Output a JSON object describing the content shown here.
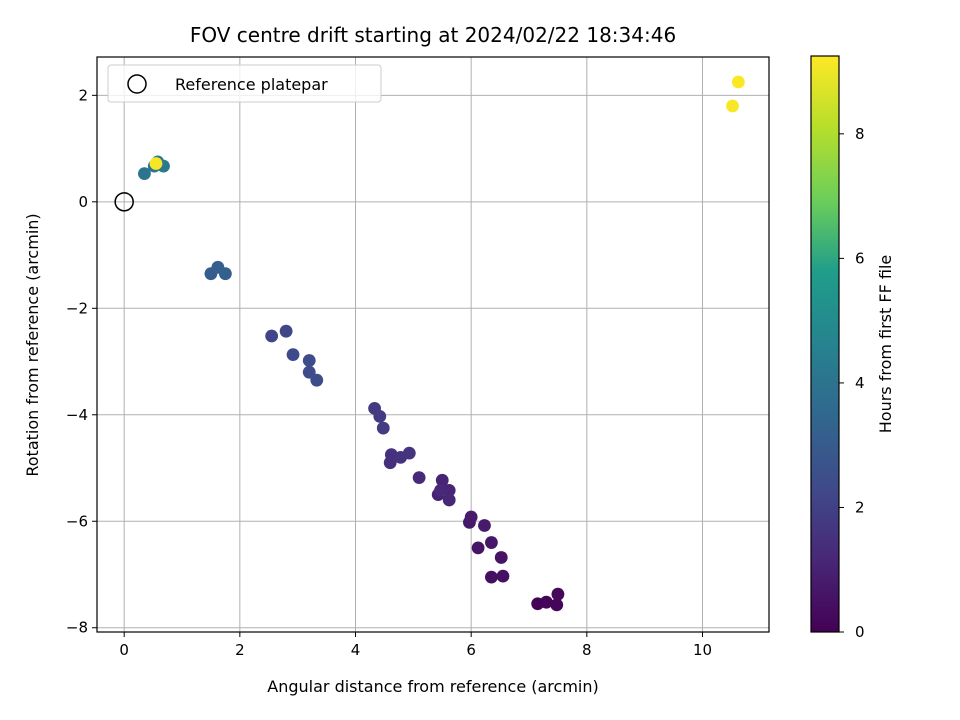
{
  "chart_data": {
    "type": "scatter",
    "title": "FOV centre drift starting at 2024/02/22 18:34:46",
    "xlabel": "Angular distance from reference (arcmin)",
    "ylabel": "Rotation from reference (arcmin)",
    "xlim": [
      -0.47,
      11.15
    ],
    "ylim": [
      -8.08,
      2.72
    ],
    "xticks": [
      0,
      2,
      4,
      6,
      8,
      10
    ],
    "yticks": [
      -8,
      -6,
      -4,
      -2,
      0,
      2
    ],
    "xtick_labels": [
      "0",
      "2",
      "4",
      "6",
      "8",
      "10"
    ],
    "ytick_labels": [
      "−8",
      "−6",
      "−4",
      "−2",
      "0",
      "2"
    ],
    "grid": true,
    "legend": {
      "position": "upper-left",
      "entries": [
        {
          "label": "Reference platepar",
          "marker": "open-circle",
          "x": 0,
          "y": 0
        }
      ]
    },
    "colorbar": {
      "label": "Hours from first FF file",
      "colormap": "viridis",
      "range": [
        0,
        9.25
      ],
      "ticks": [
        0,
        2,
        4,
        6,
        8
      ],
      "tick_labels": [
        "0",
        "2",
        "4",
        "6",
        "8"
      ],
      "colors": [
        "#440154",
        "#482777",
        "#3f4a8a",
        "#31678e",
        "#26838f",
        "#1f9d8a",
        "#6cce5a",
        "#b6de2b",
        "#fee825"
      ]
    },
    "series": [
      {
        "points": [
          {
            "x": 7.15,
            "y": -7.55,
            "c": 0.05
          },
          {
            "x": 7.3,
            "y": -7.52,
            "c": 0.1
          },
          {
            "x": 7.48,
            "y": -7.57,
            "c": 0.15
          },
          {
            "x": 7.5,
            "y": -7.37,
            "c": 0.2
          },
          {
            "x": 6.35,
            "y": -7.05,
            "c": 0.45
          },
          {
            "x": 6.55,
            "y": -7.03,
            "c": 0.5
          },
          {
            "x": 6.52,
            "y": -6.68,
            "c": 0.55
          },
          {
            "x": 6.12,
            "y": -6.5,
            "c": 0.6
          },
          {
            "x": 6.35,
            "y": -6.4,
            "c": 0.65
          },
          {
            "x": 5.97,
            "y": -6.02,
            "c": 0.7
          },
          {
            "x": 6.0,
            "y": -5.92,
            "c": 0.75
          },
          {
            "x": 6.23,
            "y": -6.08,
            "c": 0.8
          },
          {
            "x": 5.43,
            "y": -5.5,
            "c": 1.0
          },
          {
            "x": 5.5,
            "y": -5.23,
            "c": 1.05
          },
          {
            "x": 5.62,
            "y": -5.42,
            "c": 1.1
          },
          {
            "x": 5.62,
            "y": -5.6,
            "c": 1.15
          },
          {
            "x": 5.47,
            "y": -5.42,
            "c": 1.2
          },
          {
            "x": 5.1,
            "y": -5.18,
            "c": 1.3
          },
          {
            "x": 4.6,
            "y": -4.9,
            "c": 1.45
          },
          {
            "x": 4.62,
            "y": -4.75,
            "c": 1.5
          },
          {
            "x": 4.78,
            "y": -4.8,
            "c": 1.55
          },
          {
            "x": 4.93,
            "y": -4.72,
            "c": 1.6
          },
          {
            "x": 4.33,
            "y": -3.88,
            "c": 1.75
          },
          {
            "x": 4.42,
            "y": -4.03,
            "c": 1.8
          },
          {
            "x": 4.48,
            "y": -4.25,
            "c": 1.85
          },
          {
            "x": 2.55,
            "y": -2.52,
            "c": 2.15
          },
          {
            "x": 2.8,
            "y": -2.43,
            "c": 2.2
          },
          {
            "x": 2.92,
            "y": -2.87,
            "c": 2.3
          },
          {
            "x": 3.2,
            "y": -2.98,
            "c": 2.35
          },
          {
            "x": 3.2,
            "y": -3.2,
            "c": 2.4
          },
          {
            "x": 3.33,
            "y": -3.35,
            "c": 2.45
          },
          {
            "x": 1.5,
            "y": -1.35,
            "c": 3.1
          },
          {
            "x": 1.62,
            "y": -1.23,
            "c": 3.15
          },
          {
            "x": 1.75,
            "y": -1.35,
            "c": 3.2
          },
          {
            "x": 0.35,
            "y": 0.53,
            "c": 4.0
          },
          {
            "x": 0.52,
            "y": 0.67,
            "c": 4.1
          },
          {
            "x": 0.58,
            "y": 0.75,
            "c": 4.15
          },
          {
            "x": 0.68,
            "y": 0.67,
            "c": 4.2
          },
          {
            "x": 0.55,
            "y": 0.72,
            "c": 9.1
          },
          {
            "x": 10.52,
            "y": 1.8,
            "c": 9.15
          },
          {
            "x": 10.62,
            "y": 2.25,
            "c": 9.2
          }
        ]
      }
    ]
  }
}
